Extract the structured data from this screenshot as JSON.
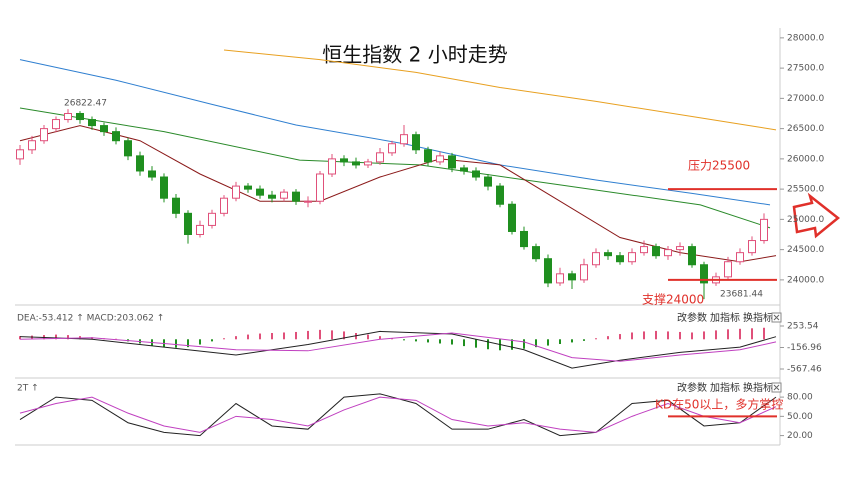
{
  "chart_data": [
    {
      "type": "candlestick",
      "title": "恒生指数 2 小时走势",
      "up_color": "#e0507a",
      "down_color": "#1f8f1f",
      "ylim": [
        23750,
        28130
      ],
      "yticks": [
        {
          "value": 24000,
          "label": "24000.0"
        },
        {
          "value": 24500,
          "label": "24500.0"
        },
        {
          "value": 25000,
          "label": "25000.0"
        },
        {
          "value": 25500,
          "label": "25500.0"
        },
        {
          "value": 26000,
          "label": "26000.0"
        },
        {
          "value": 26500,
          "label": "26500.0"
        },
        {
          "value": 27000,
          "label": "27000.0"
        },
        {
          "value": 27500,
          "label": "27500.0"
        },
        {
          "value": 28000,
          "label": "28000.0"
        }
      ],
      "open": [
        26000,
        26150,
        26300,
        26500,
        26650,
        26750,
        26650,
        26550,
        26450,
        26300,
        26050,
        25800,
        25700,
        25350,
        25100,
        24750,
        24900,
        25100,
        25350,
        25550,
        25500,
        25400,
        25350,
        25450,
        25300,
        25300,
        25750,
        26000,
        25950,
        25900,
        25950,
        26100,
        26250,
        26400,
        26150,
        25950,
        26050,
        25850,
        25800,
        25700,
        25550,
        25250,
        24800,
        24550,
        24350,
        23950,
        24100,
        24000,
        24250,
        24450,
        24400,
        24300,
        24450,
        24550,
        24400,
        24500,
        24550,
        24250,
        23950,
        24050,
        24300,
        24450,
        24650
      ],
      "high": [
        26230,
        26380,
        26560,
        26700,
        26822.47,
        26790,
        26700,
        26600,
        26520,
        26350,
        26120,
        25880,
        25760,
        25420,
        25150,
        24980,
        25160,
        25400,
        25620,
        25600,
        25560,
        25470,
        25500,
        25500,
        25380,
        25800,
        26080,
        26060,
        26020,
        26000,
        26180,
        26300,
        26560,
        26450,
        26200,
        26120,
        26100,
        25900,
        25860,
        25750,
        25600,
        25300,
        24880,
        24600,
        24420,
        24200,
        24150,
        24350,
        24520,
        24500,
        24460,
        24520,
        24650,
        24600,
        24560,
        24620,
        24600,
        24300,
        24120,
        24380,
        24520,
        24720,
        25100
      ],
      "low": [
        25900,
        26080,
        26250,
        26440,
        26600,
        26580,
        26480,
        26380,
        26240,
        25980,
        25720,
        25640,
        25280,
        25020,
        24600,
        24700,
        24850,
        25050,
        25300,
        25440,
        25340,
        25280,
        25300,
        25240,
        25200,
        25250,
        25700,
        25880,
        25840,
        25850,
        25900,
        26050,
        26200,
        26080,
        25880,
        25900,
        25780,
        25740,
        25640,
        25480,
        25200,
        24750,
        24500,
        24300,
        23880,
        23900,
        23850,
        23950,
        24200,
        24330,
        24250,
        24250,
        24400,
        24350,
        24330,
        24400,
        24200,
        23681.44,
        23900,
        24000,
        24250,
        24400,
        24600
      ],
      "close": [
        26150,
        26300,
        26500,
        26650,
        26750,
        26650,
        26550,
        26450,
        26300,
        26050,
        25800,
        25700,
        25350,
        25100,
        24750,
        24900,
        25100,
        25350,
        25550,
        25500,
        25400,
        25350,
        25450,
        25300,
        25300,
        25750,
        26000,
        25950,
        25900,
        25950,
        26100,
        26250,
        26400,
        26150,
        25950,
        26050,
        25850,
        25800,
        25700,
        25550,
        25250,
        24800,
        24550,
        24350,
        23950,
        24100,
        24000,
        24250,
        24450,
        24400,
        24300,
        24450,
        24550,
        24400,
        24500,
        24550,
        24250,
        23950,
        24050,
        24300,
        24450,
        24650,
        25000
      ],
      "lines": [
        {
          "color": "#2f7fd0",
          "x": [
            0,
            8,
            16,
            23,
            32,
            40,
            48,
            56,
            62.5
          ],
          "values": [
            27640,
            27300,
            26900,
            26560,
            26250,
            25900,
            25650,
            25430,
            25240
          ]
        },
        {
          "color": "#e8a020",
          "x": [
            17,
            25,
            33,
            40,
            48,
            56,
            63
          ],
          "values": [
            27800,
            27640,
            27430,
            27180,
            26950,
            26700,
            26480
          ]
        },
        {
          "color": "#2a8a2a",
          "x": [
            0,
            12,
            23.3,
            33.3,
            45,
            56.7,
            62.5
          ],
          "values": [
            26840,
            26450,
            25980,
            25900,
            25570,
            25240,
            24860
          ]
        },
        {
          "color": "#8b1a1a",
          "x": [
            0,
            5,
            10,
            15,
            20,
            25,
            30,
            35,
            40,
            45,
            50,
            55,
            60,
            63
          ],
          "values": [
            26300,
            26550,
            26300,
            25750,
            25300,
            25300,
            25700,
            26000,
            25900,
            25300,
            24700,
            24450,
            24300,
            24400
          ]
        }
      ],
      "levels": [
        {
          "label": "压力25500",
          "value": 25500
        },
        {
          "label": "支撑24000",
          "value": 24000
        }
      ]
    },
    {
      "type": "macd",
      "header": "DEA:-53.412 ↑ MACD:203.062 ↑",
      "buttons": [
        "改参数",
        "加指标",
        "换指标"
      ],
      "up_color": "#e0507a",
      "down_color": "#1f8f1f",
      "ylim": [
        -682,
        502
      ],
      "yticks": [
        253.54,
        -156.96,
        -567.46
      ],
      "values": [
        60,
        70,
        80,
        90,
        80,
        60,
        40,
        20,
        10,
        -40,
        -80,
        -120,
        -150,
        -160,
        -150,
        -100,
        -40,
        20,
        60,
        90,
        110,
        120,
        130,
        140,
        160,
        180,
        170,
        150,
        120,
        90,
        60,
        20,
        -20,
        -40,
        -60,
        -80,
        -100,
        -130,
        -160,
        -190,
        -210,
        -200,
        -180,
        -150,
        -120,
        -90,
        -60,
        -30,
        20,
        60,
        100,
        130,
        150,
        160,
        150,
        140,
        130,
        150,
        170,
        190,
        200,
        210,
        220
      ],
      "lines": [
        {
          "color": "#222222",
          "x": [
            0,
            6,
            12,
            18,
            24,
            30,
            36,
            42,
            46,
            50,
            55,
            60,
            63
          ],
          "values": [
            50,
            0,
            -150,
            -300,
            -100,
            150,
            100,
            -200,
            -550,
            -400,
            -250,
            -150,
            50
          ]
        },
        {
          "color": "#c040c0",
          "x": [
            0,
            6,
            12,
            18,
            24,
            30,
            36,
            42,
            46,
            50,
            55,
            60,
            63
          ],
          "values": [
            0,
            30,
            -80,
            -200,
            -220,
            0,
            120,
            -50,
            -350,
            -420,
            -300,
            -200,
            -50
          ]
        }
      ]
    },
    {
      "type": "kd",
      "header": "2T ↑",
      "buttons": [
        "改参数",
        "加指标",
        "换指标"
      ],
      "ylim": [
        10,
        102
      ],
      "yticks": [
        {
          "value": 80,
          "label": "80.00"
        },
        {
          "value": 50,
          "label": "50.00"
        },
        {
          "value": 20,
          "label": "20.00"
        }
      ],
      "lines": [
        {
          "color": "#222222",
          "x": [
            0,
            3,
            6,
            9,
            12,
            15,
            18,
            21,
            24,
            27,
            30,
            33,
            36,
            39,
            42,
            45,
            48,
            51,
            54,
            57,
            60,
            63
          ],
          "values": [
            45,
            80,
            75,
            40,
            25,
            20,
            70,
            35,
            30,
            80,
            85,
            70,
            30,
            30,
            45,
            20,
            25,
            70,
            75,
            35,
            40,
            80
          ]
        },
        {
          "color": "#c040c0",
          "x": [
            0,
            3,
            6,
            9,
            12,
            15,
            18,
            21,
            24,
            27,
            30,
            33,
            36,
            39,
            42,
            45,
            48,
            51,
            54,
            57,
            60,
            63
          ],
          "values": [
            55,
            70,
            80,
            55,
            35,
            25,
            50,
            45,
            35,
            60,
            80,
            75,
            45,
            35,
            40,
            30,
            25,
            50,
            70,
            50,
            40,
            65
          ]
        }
      ],
      "levels": [
        {
          "label": "KD在50以上，多方掌控",
          "value": 50
        }
      ]
    }
  ]
}
